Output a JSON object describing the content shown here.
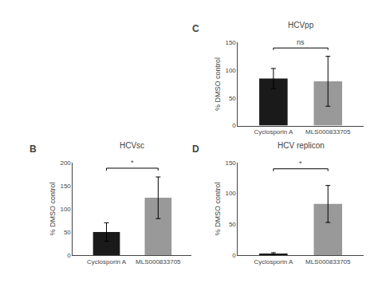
{
  "chart_data": [
    {
      "type": "bar",
      "panel_label": "B",
      "title": "HCVsc",
      "ylabel": "% DMSO control",
      "categories": [
        "Cyclosporin A",
        "MLS000833705"
      ],
      "values": [
        50,
        124
      ],
      "errors": [
        20,
        45
      ],
      "colors": [
        "#1a1a1a",
        "#999999"
      ],
      "ylim": [
        0,
        200
      ],
      "yticks": [
        0,
        50,
        100,
        150,
        200
      ],
      "grid": false,
      "annotations": [
        {
          "text": "*",
          "y": 188
        }
      ]
    },
    {
      "type": "bar",
      "panel_label": "C",
      "title": "HCVpp",
      "ylabel": "% DMSO control",
      "categories": [
        "Cyclosporin A",
        "MLS000833705"
      ],
      "values": [
        85,
        80
      ],
      "errors": [
        18,
        45
      ],
      "colors": [
        "#1a1a1a",
        "#999999"
      ],
      "ylim": [
        0,
        150
      ],
      "yticks": [
        0,
        50,
        100,
        150
      ],
      "grid": false,
      "annotations": [
        {
          "text": "ns",
          "y": 140
        }
      ]
    },
    {
      "type": "bar",
      "panel_label": "D",
      "title": "HCV replicon",
      "ylabel": "% DMSO control",
      "categories": [
        "Cyclosporin A",
        "MLS000833705"
      ],
      "values": [
        2,
        83
      ],
      "errors": [
        2,
        30
      ],
      "colors": [
        "#1a1a1a",
        "#999999"
      ],
      "ylim": [
        0,
        150
      ],
      "yticks": [
        0,
        50,
        100,
        150
      ],
      "grid": false,
      "annotations": [
        {
          "text": "*",
          "y": 140
        }
      ]
    }
  ]
}
